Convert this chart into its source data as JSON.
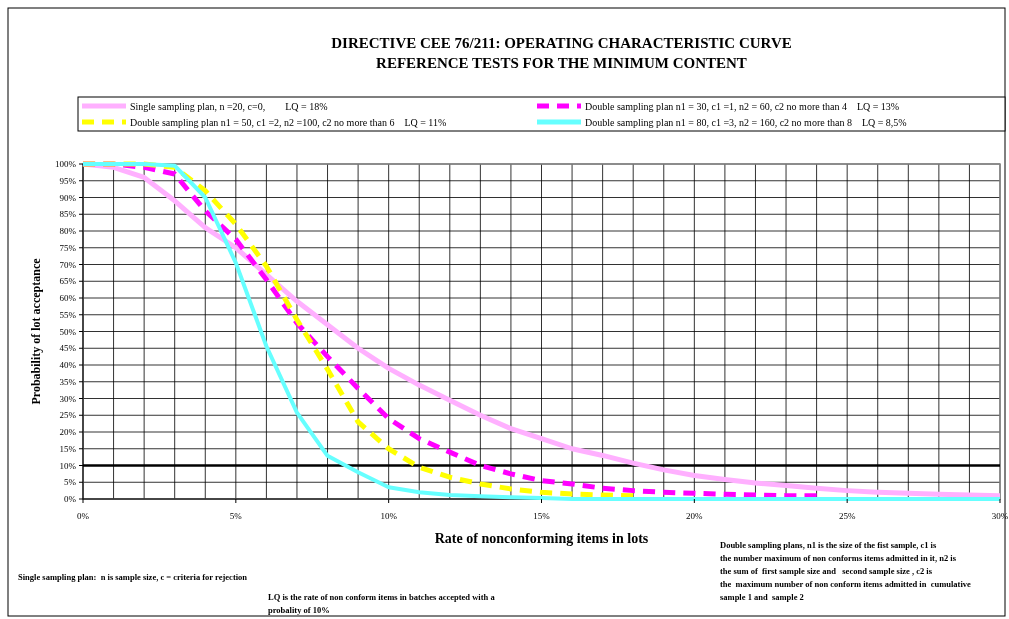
{
  "chart_data": {
    "type": "line",
    "title": "DIRECTIVE CEE 76/211: OPERATING CHARACTERISTIC CURVE",
    "subtitle": "REFERENCE TESTS FOR THE MINIMUM CONTENT",
    "xlabel": "Rate of nonconforming items in lots",
    "ylabel": "Probability  of lot acceptance",
    "x": [
      0,
      1,
      2,
      3,
      4,
      5,
      6,
      7,
      8,
      9,
      10,
      11,
      12,
      13,
      14,
      15,
      16,
      17,
      18,
      19,
      20,
      21,
      22,
      23,
      24,
      25,
      26,
      27,
      28,
      29,
      30
    ],
    "series": [
      {
        "name": "Single sampling plan, n =20, c=0,        LQ = 18%",
        "color": "#ffb0ff",
        "line_style": "solid",
        "values": [
          100,
          99,
          96,
          89,
          81,
          75,
          67,
          59,
          52,
          45,
          39,
          34,
          29.5,
          25,
          21,
          18,
          15,
          13,
          10.7,
          8.7,
          7,
          5.8,
          4.8,
          4,
          3.2,
          2.5,
          2,
          1.7,
          1.4,
          1.2,
          1
        ]
      },
      {
        "name": "Double sampling plan n1 = 30, c1 =1, n2 = 60, c2 no more than 4    LQ = 13%",
        "color": "#ff00ff",
        "line_style": "dashed",
        "values": [
          100,
          100,
          99,
          97,
          86,
          77.5,
          65.5,
          52.5,
          42.5,
          33,
          24,
          18,
          14,
          10,
          7.5,
          5.5,
          4.5,
          3.2,
          2.5,
          2,
          1.7,
          1.4,
          1.2,
          1,
          1,
          null,
          null,
          null,
          null,
          null,
          null
        ]
      },
      {
        "name": "Double sampling plan n1 = 50, c1 =2, n2 =100, c2 no more than 6    LQ = 11%",
        "color": "#ffff00",
        "line_style": "dashed",
        "values": [
          100,
          100,
          100,
          99,
          92,
          82,
          69.5,
          53.5,
          38.7,
          23,
          15,
          9.5,
          6.5,
          4.5,
          3,
          2,
          1.5,
          1.2,
          1,
          null,
          null,
          null,
          null,
          null,
          null,
          null,
          null,
          null,
          null,
          null,
          null
        ]
      },
      {
        "name": "Double sampling plan n1 = 80, c1 =3, n2 = 160, c2 no more than 8    LQ = 8,5%",
        "color": "#66ffff",
        "line_style": "solid",
        "values": [
          100,
          100,
          100,
          99.5,
          90,
          70.5,
          45.6,
          25.8,
          12.9,
          8,
          3.5,
          2,
          1.2,
          0.8,
          0.5,
          0.3,
          0,
          0,
          0,
          0,
          0,
          0,
          0,
          0,
          0,
          0,
          0,
          0,
          0,
          0,
          0
        ]
      }
    ],
    "xlim": [
      0,
      30
    ],
    "xticks": [
      {
        "value": 0,
        "label": "0%"
      },
      {
        "value": 1,
        "label": null
      },
      {
        "value": 2,
        "label": null
      },
      {
        "value": 3,
        "label": null
      },
      {
        "value": 4,
        "label": null
      },
      {
        "value": 5,
        "label": "5%"
      },
      {
        "value": 6,
        "label": null
      },
      {
        "value": 7,
        "label": null
      },
      {
        "value": 8,
        "label": null
      },
      {
        "value": 9,
        "label": null
      },
      {
        "value": 10,
        "label": "10%"
      },
      {
        "value": 11,
        "label": null
      },
      {
        "value": 12,
        "label": null
      },
      {
        "value": 13,
        "label": null
      },
      {
        "value": 14,
        "label": null
      },
      {
        "value": 15,
        "label": "15%"
      },
      {
        "value": 16,
        "label": null
      },
      {
        "value": 17,
        "label": null
      },
      {
        "value": 18,
        "label": null
      },
      {
        "value": 19,
        "label": null
      },
      {
        "value": 20,
        "label": "20%"
      },
      {
        "value": 21,
        "label": null
      },
      {
        "value": 22,
        "label": null
      },
      {
        "value": 23,
        "label": null
      },
      {
        "value": 24,
        "label": null
      },
      {
        "value": 25,
        "label": "25%"
      },
      {
        "value": 26,
        "label": null
      },
      {
        "value": 27,
        "label": null
      },
      {
        "value": 28,
        "label": null
      },
      {
        "value": 29,
        "label": null
      },
      {
        "value": 30,
        "label": "30%"
      }
    ],
    "ylim": [
      0,
      100
    ],
    "yticks": [
      {
        "value": 0,
        "label": "0%"
      },
      {
        "value": 5,
        "label": "5%"
      },
      {
        "value": 10,
        "label": "10%"
      },
      {
        "value": 15,
        "label": "15%"
      },
      {
        "value": 20,
        "label": "20%"
      },
      {
        "value": 25,
        "label": "25%"
      },
      {
        "value": 30,
        "label": "30%"
      },
      {
        "value": 35,
        "label": "35%"
      },
      {
        "value": 40,
        "label": "40%"
      },
      {
        "value": 45,
        "label": "45%"
      },
      {
        "value": 50,
        "label": "50%"
      },
      {
        "value": 55,
        "label": "55%"
      },
      {
        "value": 60,
        "label": "60%"
      },
      {
        "value": 65,
        "label": "65%"
      },
      {
        "value": 70,
        "label": "70%"
      },
      {
        "value": 75,
        "label": "75%"
      },
      {
        "value": 80,
        "label": "80%"
      },
      {
        "value": 85,
        "label": "85%"
      },
      {
        "value": 90,
        "label": "90%"
      },
      {
        "value": 95,
        "label": "95%"
      },
      {
        "value": 100,
        "label": "100%"
      }
    ],
    "grid": true,
    "legend": "top",
    "marker": "none",
    "ref_lines": [
      {
        "axis": "y",
        "value": 10,
        "color": "#000000"
      }
    ],
    "annotations": [
      "Single sampling plan:  n is sample size, c = criteria for rejection",
      "LQ is the rate of non conform items in batches accepted with a probality of 10%",
      "Double sampling plans, n1 is the size of the fist sample, c1 is the number maximum of non conforms items admitted in it, n2 is the sum of  first sample size and   second sample size , c2 is the  maximum number of non conform items admitted in  cumulative sample 1 and  sample 2"
    ]
  }
}
